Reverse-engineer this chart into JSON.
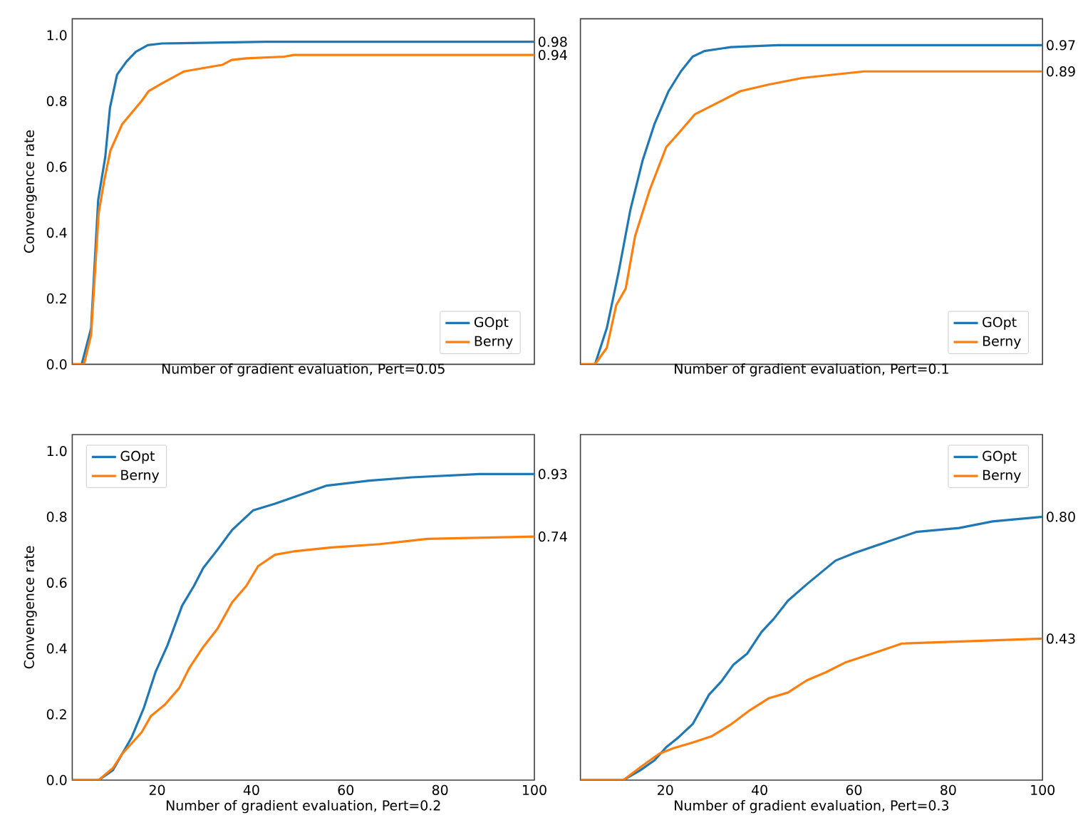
{
  "chart_data": [
    {
      "type": "line",
      "xlabel": "Number of gradient evaluation, Pert=0.05",
      "ylabel": "Convengence rate",
      "xlim": [
        2,
        100
      ],
      "ylim": [
        0,
        1.05
      ],
      "yticks": [
        {
          "value": 0,
          "label": "0.0"
        },
        {
          "value": 0.2,
          "label": "0.2"
        },
        {
          "value": 0.4,
          "label": "0.4"
        },
        {
          "value": 0.6,
          "label": "0.6"
        },
        {
          "value": 0.8,
          "label": "0.8"
        },
        {
          "value": 1,
          "label": "1.0"
        }
      ],
      "y2lim": [
        0,
        1.05
      ],
      "y2ticks": [
        {
          "value": 0.98,
          "label": "0.98"
        },
        {
          "value": 0.94,
          "label": "0.94"
        }
      ],
      "tick_labels": [
        "y",
        "y2"
      ],
      "legend": "bottom right",
      "series": [
        {
          "name": "GOpt",
          "color": "#1f77b4",
          "x": [
            2,
            4,
            6,
            7.5,
            9,
            10,
            11.5,
            13.5,
            15.5,
            18,
            21,
            34,
            43,
            100
          ],
          "values": [
            0,
            0,
            0.11,
            0.5,
            0.63,
            0.78,
            0.88,
            0.92,
            0.95,
            0.97,
            0.975,
            0.978,
            0.98,
            0.98
          ]
        },
        {
          "name": "Berny",
          "color": "#ff7f0e",
          "x": [
            2,
            4.5,
            6,
            7.6,
            8.8,
            10.1,
            12.6,
            16.7,
            18.2,
            21.2,
            25.7,
            33.8,
            35.8,
            38.9,
            47,
            49,
            100
          ],
          "values": [
            0,
            0,
            0.09,
            0.46,
            0.56,
            0.65,
            0.73,
            0.8,
            0.83,
            0.855,
            0.89,
            0.91,
            0.925,
            0.93,
            0.935,
            0.94,
            0.94
          ]
        }
      ]
    },
    {
      "type": "line",
      "xlabel": "Number of gradient evaluation, Pert=0.1",
      "xlim": [
        2,
        100
      ],
      "ylim": [
        0,
        1.05
      ],
      "y2lim": [
        0,
        1.05
      ],
      "y2ticks": [
        {
          "value": 0.97,
          "label": "0.97"
        },
        {
          "value": 0.89,
          "label": "0.89"
        }
      ],
      "tick_labels": [
        "y2"
      ],
      "legend": "bottom right",
      "series": [
        {
          "name": "GOpt",
          "color": "#1f77b4",
          "x": [
            2,
            5.1,
            7.6,
            10.1,
            12.6,
            15.2,
            17.7,
            20.7,
            23.3,
            25.8,
            28.3,
            33.9,
            44,
            100
          ],
          "values": [
            0,
            0,
            0.11,
            0.28,
            0.47,
            0.62,
            0.73,
            0.83,
            0.89,
            0.935,
            0.952,
            0.964,
            0.97,
            0.97
          ]
        },
        {
          "name": "Berny",
          "color": "#ff7f0e",
          "x": [
            2,
            5.1,
            5.6,
            7.6,
            9.6,
            11.6,
            13.6,
            16.7,
            20.2,
            22.7,
            26.3,
            31.8,
            35.9,
            41.9,
            49,
            62.1,
            100
          ],
          "values": [
            0,
            0,
            0.01,
            0.05,
            0.18,
            0.23,
            0.39,
            0.53,
            0.66,
            0.7,
            0.76,
            0.8,
            0.83,
            0.85,
            0.87,
            0.89,
            0.89
          ]
        }
      ]
    },
    {
      "type": "line",
      "xlabel": "Number of gradient evaluation, Pert=0.2",
      "ylabel": "Convengence rate",
      "xlim": [
        2,
        100
      ],
      "ylim": [
        0,
        1.05
      ],
      "xticks": [
        20,
        40,
        60,
        80,
        100
      ],
      "yticks": [
        {
          "value": 0,
          "label": "0.0"
        },
        {
          "value": 0.2,
          "label": "0.2"
        },
        {
          "value": 0.4,
          "label": "0.4"
        },
        {
          "value": 0.6,
          "label": "0.6"
        },
        {
          "value": 0.8,
          "label": "0.8"
        },
        {
          "value": 1,
          "label": "1.0"
        }
      ],
      "y2lim": [
        0,
        1.05
      ],
      "y2ticks": [
        {
          "value": 0.93,
          "label": "0.93"
        },
        {
          "value": 0.74,
          "label": "0.74"
        }
      ],
      "legend": "top left",
      "series": [
        {
          "name": "GOpt",
          "color": "#1f77b4",
          "x": [
            2,
            7.6,
            10.6,
            12.6,
            14.6,
            17.2,
            19.7,
            22.2,
            25.3,
            27.8,
            29.8,
            32.8,
            35.9,
            40.4,
            45,
            49,
            56,
            65,
            74,
            88.4,
            100
          ],
          "values": [
            0,
            0,
            0.03,
            0.08,
            0.13,
            0.22,
            0.33,
            0.41,
            0.53,
            0.59,
            0.645,
            0.7,
            0.76,
            0.82,
            0.84,
            0.86,
            0.895,
            0.91,
            0.92,
            0.93,
            0.93
          ]
        },
        {
          "name": "Berny",
          "color": "#ff7f0e",
          "x": [
            2,
            7.6,
            10.6,
            12.6,
            16.7,
            18.7,
            21.7,
            24.7,
            26.8,
            29.8,
            32.8,
            35.9,
            38.9,
            41.4,
            45,
            49,
            57,
            67.2,
            77.3,
            100
          ],
          "values": [
            0,
            0,
            0.036,
            0.08,
            0.145,
            0.195,
            0.23,
            0.28,
            0.34,
            0.405,
            0.46,
            0.54,
            0.59,
            0.65,
            0.685,
            0.695,
            0.707,
            0.717,
            0.733,
            0.74
          ]
        }
      ]
    },
    {
      "type": "line",
      "xlabel": "Number of gradient evaluation, Pert=0.3",
      "xlim": [
        2,
        100
      ],
      "ylim": [
        0,
        1.05
      ],
      "xticks": [
        20,
        40,
        60,
        80,
        100
      ],
      "y2lim": [
        0,
        1.05
      ],
      "y2ticks": [
        {
          "value": 0.8,
          "label": "0.80"
        },
        {
          "value": 0.43,
          "label": "0.43"
        }
      ],
      "tick_labels": [
        "x",
        "y2"
      ],
      "legend": "top right",
      "series": [
        {
          "name": "GOpt",
          "color": "#1f77b4",
          "x": [
            2,
            11.1,
            14.7,
            17.7,
            20.2,
            22.8,
            25.8,
            29.3,
            31.9,
            34.4,
            37.4,
            40.4,
            43,
            46,
            50,
            56.1,
            60.1,
            66.2,
            73.2,
            82.3,
            89.4,
            100
          ],
          "values": [
            0,
            0,
            0.03,
            0.06,
            0.1,
            0.13,
            0.17,
            0.26,
            0.3,
            0.35,
            0.385,
            0.45,
            0.49,
            0.545,
            0.595,
            0.667,
            0.69,
            0.72,
            0.754,
            0.766,
            0.786,
            0.8
          ]
        },
        {
          "name": "Berny",
          "color": "#ff7f0e",
          "x": [
            2,
            11.1,
            14.8,
            18.7,
            21.7,
            25.8,
            29.8,
            33.9,
            37.9,
            42,
            46,
            50,
            54.1,
            58.1,
            64.2,
            70.2,
            100
          ],
          "values": [
            0,
            0,
            0.04,
            0.08,
            0.097,
            0.114,
            0.133,
            0.169,
            0.212,
            0.249,
            0.266,
            0.303,
            0.328,
            0.357,
            0.386,
            0.415,
            0.43
          ]
        }
      ]
    }
  ]
}
